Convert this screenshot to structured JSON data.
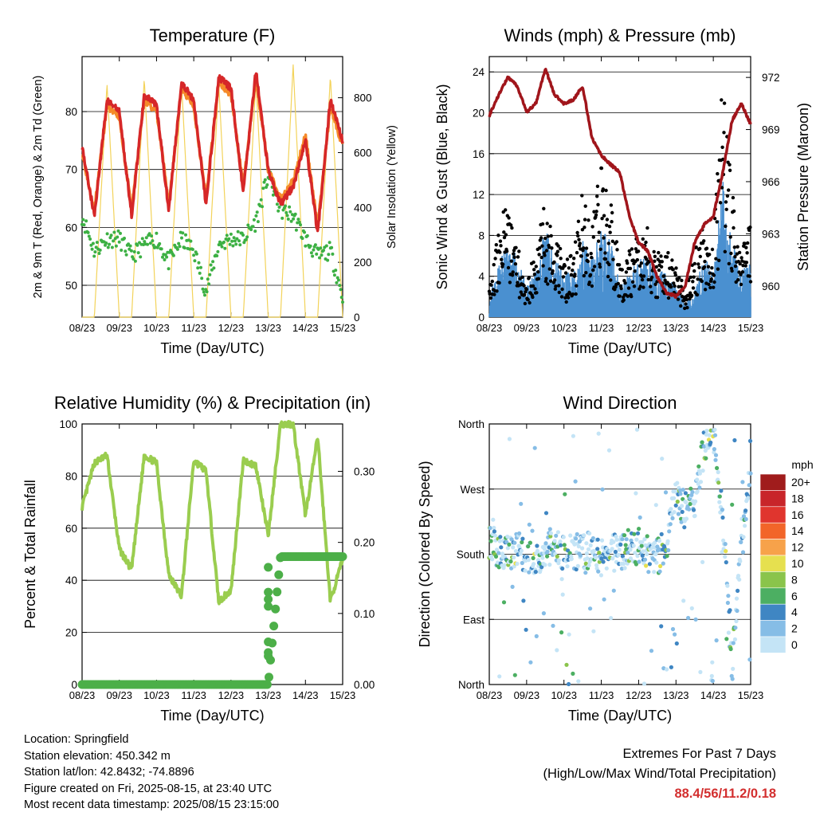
{
  "x_ticks": [
    "08/23",
    "09/23",
    "10/23",
    "11/23",
    "12/23",
    "13/23",
    "14/23",
    "15/23"
  ],
  "temperature": {
    "title": "Temperature (F)",
    "xlabel": "Time (Day/UTC)",
    "ylabel_left": "2m & 9m T (Red, Orange) & 2m Td (Green)",
    "ylabel_right": "Solar Insolation (Yellow)",
    "yticks_left": [
      "50",
      "60",
      "70",
      "80"
    ],
    "yticks_right": [
      "0",
      "200",
      "400",
      "600",
      "800"
    ]
  },
  "winds": {
    "title": "Winds (mph) & Pressure (mb)",
    "xlabel": "Time (Day/UTC)",
    "ylabel_left": "Sonic Wind & Gust (Blue, Black)",
    "ylabel_right": "Station Pressure (Maroon)",
    "yticks_left": [
      "0",
      "4",
      "8",
      "12",
      "16",
      "20",
      "24"
    ],
    "yticks_right": [
      "960",
      "963",
      "966",
      "969",
      "972"
    ]
  },
  "humidity": {
    "title": "Relative Humidity (%) & Precipitation (in)",
    "xlabel": "Time (Day/UTC)",
    "ylabel_left": "Percent & Total Rainfall",
    "yticks_left": [
      "0",
      "20",
      "40",
      "60",
      "80",
      "100"
    ],
    "yticks_right": [
      "0.00",
      "0.10",
      "0.20",
      "0.30"
    ]
  },
  "direction": {
    "title": "Wind Direction",
    "xlabel": "Time (Day/UTC)",
    "ylabel_left": "Direction (Colored By Speed)",
    "yticks_left": [
      "North",
      "East",
      "South",
      "West",
      "North"
    ],
    "legend_title": "mph",
    "legend_labels": [
      "20+",
      "18",
      "16",
      "14",
      "12",
      "10",
      "8",
      "6",
      "4",
      "2",
      "0"
    ],
    "legend_colors": [
      "#a01c1c",
      "#c8252a",
      "#e0352e",
      "#f26529",
      "#f7a24a",
      "#e6e04f",
      "#8ac44b",
      "#4caf62",
      "#3f86c3",
      "#86bde6",
      "#c4e4f6"
    ]
  },
  "footer": {
    "location": "Location: Springfield",
    "elevation": "Station elevation: 450.342 m",
    "latlon": "Station lat/lon: 42.8432; -74.8896",
    "created": "Figure created on Fri, 2025-08-15, at 23:40 UTC",
    "recent": "Most recent data timestamp: 2025/08/15 23:15:00",
    "extremes_title": "Extremes For Past 7 Days",
    "extremes_desc": "(High/Low/Max Wind/Total Precipitation)",
    "extremes_values": "88.4/56/11.2/0.18"
  },
  "chart_data": [
    {
      "type": "line",
      "title": "Temperature (F)",
      "xlabel": "Time (Day/UTC)",
      "ylabel": "2m & 9m T (Red, Orange) & 2m Td (Green)",
      "ylabel_right": "Solar Insolation (Yellow)",
      "x": [
        8,
        8.33,
        8.67,
        9,
        9.33,
        9.67,
        10,
        10.33,
        10.67,
        11,
        11.33,
        11.67,
        12,
        12.33,
        12.67,
        13,
        13.33,
        13.67,
        14,
        14.33,
        14.67,
        15
      ],
      "ylim": [
        44.5,
        89.5
      ],
      "ylim_right": [
        0,
        950
      ],
      "series": [
        {
          "name": "2m T",
          "color": "#d62728",
          "values": [
            74,
            62,
            82,
            80,
            62,
            83,
            81,
            63,
            85,
            82,
            64,
            86,
            84,
            66,
            87,
            70,
            64,
            67,
            75,
            59,
            82,
            75
          ]
        },
        {
          "name": "9m T",
          "color": "#f58a2a",
          "values": [
            73,
            63,
            81,
            79,
            63,
            82,
            80,
            64,
            84,
            81,
            65,
            85,
            83,
            67,
            86,
            70,
            65,
            68,
            76,
            60,
            81,
            74
          ]
        },
        {
          "name": "2m Td",
          "color": "#3cb043",
          "values": [
            62,
            56,
            58,
            58,
            55,
            57,
            58,
            54,
            58,
            56,
            49,
            57,
            58,
            58,
            61,
            69,
            63,
            62,
            58,
            55,
            56,
            48
          ]
        },
        {
          "name": "Solar",
          "color": "#f3d35a",
          "values": [
            0,
            0,
            850,
            0,
            0,
            870,
            0,
            0,
            860,
            0,
            0,
            850,
            0,
            0,
            860,
            0,
            0,
            920,
            0,
            0,
            880,
            0
          ]
        }
      ]
    },
    {
      "type": "scatter",
      "title": "Winds (mph) & Pressure (mb)",
      "xlabel": "Time (Day/UTC)",
      "ylabel": "Sonic Wind & Gust (Blue, Black)",
      "ylabel_right": "Station Pressure (Maroon)",
      "x": [
        8,
        8.25,
        8.5,
        8.75,
        9,
        9.25,
        9.5,
        9.75,
        10,
        10.25,
        10.5,
        10.75,
        11,
        11.25,
        11.5,
        11.75,
        12,
        12.25,
        12.5,
        12.75,
        13,
        13.25,
        13.5,
        13.75,
        14,
        14.25,
        14.5,
        14.75,
        15
      ],
      "ylim": [
        0,
        25.5
      ],
      "ylim_right": [
        958.2,
        973.2
      ],
      "series": [
        {
          "name": "Wind",
          "color": "#4a90d0",
          "values": [
            1.5,
            3.5,
            5,
            4,
            2,
            3,
            6,
            4,
            3,
            3,
            5,
            4,
            6,
            5,
            2,
            3,
            4,
            4,
            3,
            3,
            2,
            1,
            2,
            4,
            3,
            9,
            5,
            3,
            4
          ]
        },
        {
          "name": "Gust",
          "color": "#000000",
          "values": [
            2,
            7,
            10,
            6,
            3,
            5,
            10,
            7,
            4,
            5,
            10,
            7,
            12,
            9,
            4,
            5,
            7,
            7,
            5,
            5,
            4,
            2,
            5,
            7,
            6,
            18,
            10,
            5,
            8
          ]
        },
        {
          "name": "Pressure",
          "color": "#a0151b",
          "values": [
            969.8,
            971,
            972,
            971.5,
            970,
            970.5,
            972.5,
            971,
            970.5,
            970.7,
            971.5,
            968.5,
            967.5,
            967,
            966.5,
            964,
            962.5,
            962,
            960.5,
            959.6,
            959.4,
            960,
            962.5,
            963.5,
            964,
            966.5,
            969.5,
            970.5,
            969.3
          ]
        }
      ]
    },
    {
      "type": "line",
      "title": "Relative Humidity (%) & Precipitation (in)",
      "xlabel": "Time (Day/UTC)",
      "ylabel": "Percent & Total Rainfall",
      "x": [
        8,
        8.33,
        8.67,
        9,
        9.33,
        9.67,
        10,
        10.33,
        10.67,
        11,
        11.33,
        11.67,
        12,
        12.33,
        12.67,
        13,
        13.33,
        13.67,
        14,
        14.33,
        14.67,
        15
      ],
      "ylim": [
        0,
        100
      ],
      "ylim_right": [
        0,
        0.3667
      ],
      "series": [
        {
          "name": "RH",
          "color": "#9acd4f",
          "values": [
            68,
            85,
            88,
            52,
            44,
            88,
            85,
            42,
            34,
            86,
            82,
            32,
            36,
            86,
            84,
            57,
            100,
            100,
            65,
            95,
            32,
            48
          ]
        },
        {
          "name": "Precip",
          "color": "#4caf48",
          "values": [
            0,
            0,
            0,
            0,
            0,
            0,
            0,
            0,
            0,
            0,
            0,
            0,
            0,
            0,
            0,
            0,
            0.18,
            0.18,
            0.18,
            0.18,
            0.18,
            0.18
          ]
        }
      ]
    },
    {
      "type": "scatter",
      "title": "Wind Direction",
      "xlabel": "Time (Day/UTC)",
      "ylabel": "Direction (Colored By Speed)",
      "x": [
        8,
        8.25,
        8.5,
        8.75,
        9,
        9.25,
        9.5,
        9.75,
        10,
        10.25,
        10.5,
        10.75,
        11,
        11.25,
        11.5,
        11.75,
        12,
        12.25,
        12.5,
        12.75,
        13,
        13.25,
        13.5,
        13.75,
        14,
        14.25,
        14.5,
        14.75,
        15
      ],
      "ylim": [
        0,
        360
      ],
      "series": [
        {
          "name": "Direction",
          "values": [
            200,
            185,
            180,
            190,
            170,
            175,
            185,
            195,
            180,
            185,
            180,
            190,
            175,
            185,
            180,
            190,
            185,
            180,
            175,
            195,
            260,
            240,
            250,
            330,
            350,
            230,
            20,
            200,
            300
          ]
        }
      ]
    }
  ]
}
